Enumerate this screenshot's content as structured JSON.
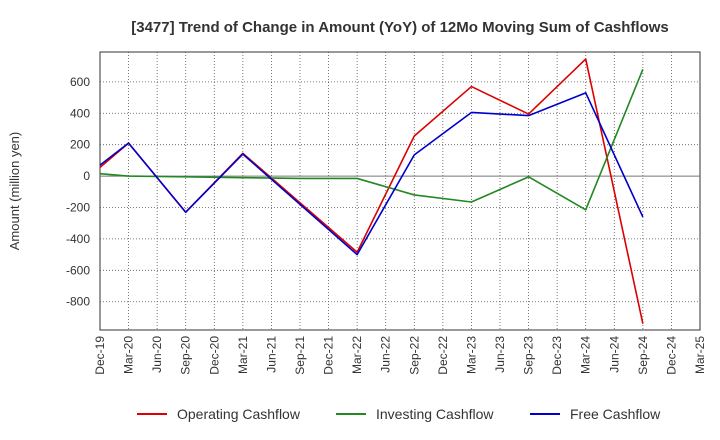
{
  "chart_data": {
    "type": "line",
    "title": "[3477]  Trend of Change in Amount (YoY) of 12Mo Moving Sum of Cashflows",
    "ylabel": "Amount (million yen)",
    "xlabel": "",
    "ylim": [
      -980,
      790
    ],
    "yticks": [
      -800,
      -600,
      -400,
      -200,
      0,
      200,
      400,
      600
    ],
    "categories": [
      "Dec-19",
      "Mar-20",
      "Jun-20",
      "Sep-20",
      "Dec-20",
      "Mar-21",
      "Jun-21",
      "Sep-21",
      "Dec-21",
      "Mar-22",
      "Jun-22",
      "Sep-22",
      "Dec-22",
      "Mar-23",
      "Jun-23",
      "Sep-23",
      "Dec-23",
      "Mar-24",
      "Jun-24",
      "Sep-24",
      "Dec-24",
      "Mar-25"
    ],
    "grid": true,
    "legend_position": "bottom",
    "series": [
      {
        "name": "Operating Cashflow",
        "color": "#dd0000",
        "values": [
          55,
          210,
          null,
          -230,
          null,
          145,
          null,
          null,
          null,
          -485,
          null,
          255,
          null,
          570,
          null,
          395,
          null,
          745,
          null,
          -940,
          null,
          null
        ]
      },
      {
        "name": "Investing Cashflow",
        "color": "#228822",
        "values": [
          15,
          0,
          null,
          -5,
          null,
          -10,
          null,
          -15,
          null,
          -15,
          null,
          -120,
          null,
          -165,
          null,
          -5,
          null,
          -215,
          null,
          680,
          null,
          null
        ]
      },
      {
        "name": "Free Cashflow",
        "color": "#0000cc",
        "values": [
          70,
          210,
          null,
          -230,
          null,
          140,
          null,
          null,
          null,
          -500,
          null,
          135,
          null,
          405,
          null,
          385,
          null,
          530,
          null,
          -260,
          null,
          null
        ]
      }
    ]
  }
}
